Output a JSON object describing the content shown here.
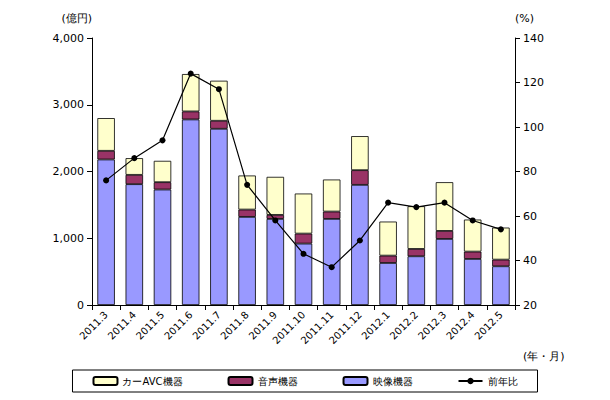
{
  "chart_data": {
    "type": "bar",
    "stacked": true,
    "grid": false,
    "legend": "bottom",
    "x_label": "(年・月)",
    "y_label": "(億円)",
    "y2_label": "(%)",
    "categories": [
      "2011.3",
      "2011.4",
      "2011.5",
      "2011.6",
      "2011.7",
      "2011.8",
      "2011.9",
      "2011.10",
      "2011.11",
      "2011.12",
      "2012.1",
      "2012.2",
      "2012.3",
      "2012.4",
      "2012.5"
    ],
    "ylim": [
      0,
      4000
    ],
    "yticks": [
      0,
      {
        "value": 1000,
        "label": "1,000"
      },
      {
        "value": 2000,
        "label": "2,000"
      },
      {
        "value": 3000,
        "label": "3,000"
      },
      {
        "value": 4000,
        "label": "4,000"
      }
    ],
    "y2lim": [
      20,
      140
    ],
    "y2ticks": [
      20,
      40,
      60,
      80,
      100,
      120,
      140
    ],
    "series": [
      {
        "name": "映像機器",
        "type": "bar",
        "color": "#9999ff",
        "values": [
          2180,
          1810,
          1730,
          2780,
          2640,
          1320,
          1290,
          920,
          1290,
          1800,
          630,
          730,
          990,
          690,
          580
        ]
      },
      {
        "name": "音声機器",
        "type": "bar",
        "color": "#993366",
        "values": [
          130,
          140,
          110,
          120,
          120,
          110,
          60,
          150,
          110,
          220,
          110,
          110,
          120,
          110,
          100
        ]
      },
      {
        "name": "カーAVC機器",
        "type": "bar",
        "color": "#ffffcc",
        "values": [
          490,
          250,
          320,
          560,
          600,
          510,
          570,
          600,
          480,
          510,
          510,
          640,
          730,
          480,
          480
        ]
      },
      {
        "name": "前年比",
        "type": "line",
        "axis": "y2",
        "color": "#000000",
        "marker": "circle",
        "values": [
          76,
          86,
          94,
          124,
          117,
          74,
          58,
          43,
          37,
          49,
          66,
          64,
          66,
          58,
          54
        ]
      }
    ]
  }
}
